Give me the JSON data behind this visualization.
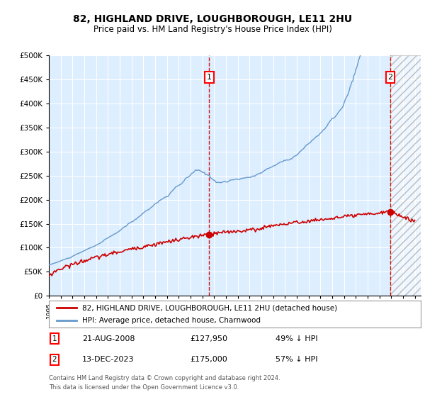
{
  "title": "82, HIGHLAND DRIVE, LOUGHBOROUGH, LE11 2HU",
  "subtitle": "Price paid vs. HM Land Registry's House Price Index (HPI)",
  "ylim": [
    0,
    500000
  ],
  "yticks": [
    0,
    50000,
    100000,
    150000,
    200000,
    250000,
    300000,
    350000,
    400000,
    450000,
    500000
  ],
  "plot_bg_color": "#ddeeff",
  "grid_color": "#ffffff",
  "sale1_price": 127950,
  "sale2_price": 175000,
  "hpi_color": "#6699cc",
  "price_color": "#cc0000",
  "dashed_line_color": "#cc0000",
  "legend_line1": "82, HIGHLAND DRIVE, LOUGHBOROUGH, LE11 2HU (detached house)",
  "legend_line2": "HPI: Average price, detached house, Charnwood",
  "footer": "Contains HM Land Registry data © Crown copyright and database right 2024.\nThis data is licensed under the Open Government Licence v3.0."
}
